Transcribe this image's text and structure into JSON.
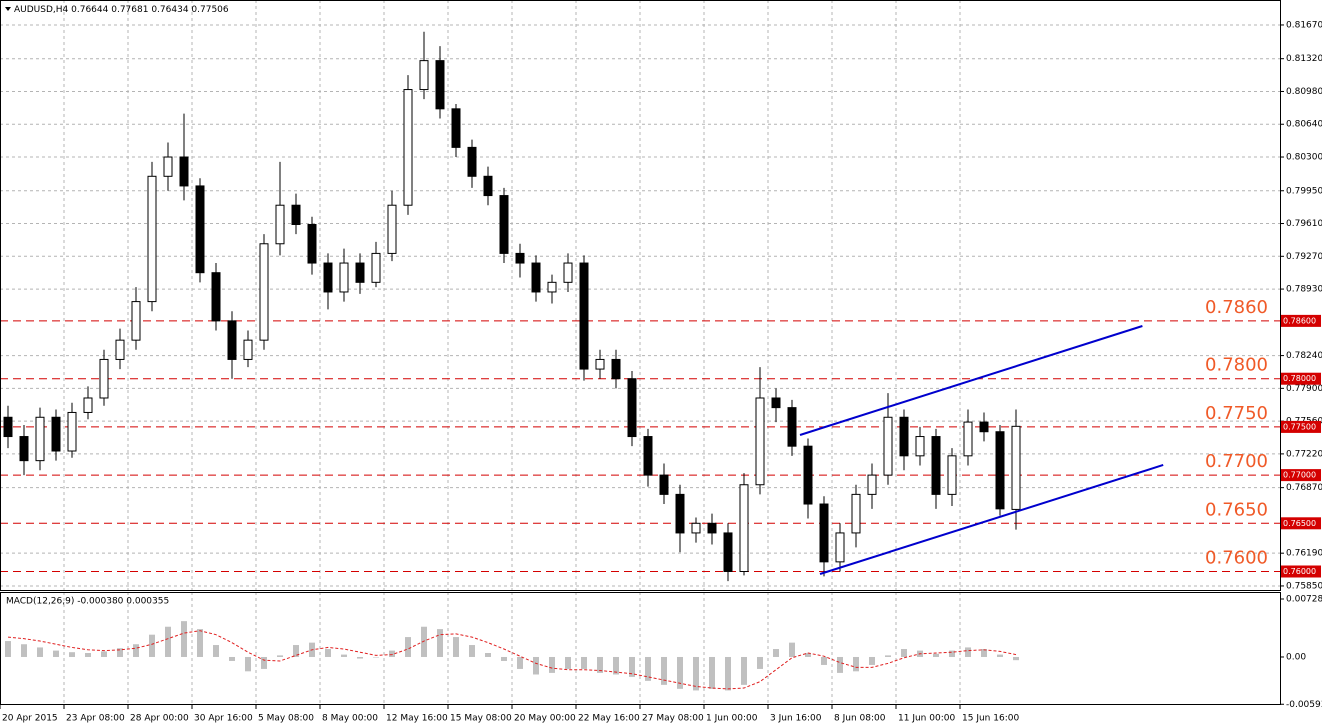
{
  "chart_data": {
    "type": "candlestick",
    "title": "AUDUSD,H4",
    "categories": [
      "20 Apr 2015",
      null,
      null,
      null,
      "23 Apr 08:00",
      null,
      null,
      null,
      "28 Apr 00:00",
      null,
      null,
      null,
      "30 Apr 16:00",
      null,
      null,
      null,
      "5 May 08:00",
      null,
      null,
      null,
      "8 May 00:00",
      null,
      null,
      null,
      "12 May 16:00",
      null,
      null,
      null,
      "15 May 08:00",
      null,
      null,
      null,
      "20 May 00:00",
      null,
      null,
      null,
      "22 May 16:00",
      null,
      null,
      null,
      "27 May 08:00",
      null,
      null,
      null,
      "1 Jun 00:00",
      null,
      null,
      null,
      "3 Jun 16:00",
      null,
      null,
      null,
      "8 Jun 08:00",
      null,
      null,
      null,
      "11 Jun 00:00",
      null,
      null,
      null,
      "15 Jun 16:00",
      null,
      null,
      null
    ],
    "open": [
      0.776,
      0.774,
      0.7715,
      0.776,
      0.7725,
      0.7765,
      0.778,
      0.782,
      0.784,
      0.788,
      0.801,
      0.803,
      0.8,
      0.791,
      0.786,
      0.782,
      0.784,
      0.794,
      0.798,
      0.796,
      0.792,
      0.789,
      0.792,
      0.79,
      0.793,
      0.798,
      0.81,
      0.813,
      0.808,
      0.804,
      0.801,
      0.799,
      0.793,
      0.792,
      0.789,
      0.79,
      0.792,
      0.781,
      0.782,
      0.78,
      0.774,
      0.77,
      0.768,
      0.764,
      0.765,
      0.764,
      0.76,
      0.769,
      0.778,
      0.777,
      0.773,
      0.767,
      0.761,
      0.764,
      0.768,
      0.77,
      0.776,
      0.772,
      0.774,
      0.768,
      0.772,
      0.7755,
      0.7745,
      0.76644
    ],
    "high": [
      0.7772,
      0.7752,
      0.777,
      0.7768,
      0.7775,
      0.7792,
      0.783,
      0.7852,
      0.7895,
      0.8025,
      0.8045,
      0.8075,
      0.8008,
      0.792,
      0.787,
      0.785,
      0.795,
      0.8025,
      0.7992,
      0.7968,
      0.793,
      0.7935,
      0.793,
      0.7942,
      0.7995,
      0.8115,
      0.816,
      0.8145,
      0.8085,
      0.8048,
      0.802,
      0.7998,
      0.794,
      0.7928,
      0.7908,
      0.793,
      0.7928,
      0.783,
      0.783,
      0.7808,
      0.7748,
      0.7712,
      0.769,
      0.7656,
      0.766,
      0.765,
      0.7702,
      0.7812,
      0.779,
      0.7778,
      0.7738,
      0.7678,
      0.765,
      0.769,
      0.7712,
      0.7785,
      0.7768,
      0.775,
      0.7748,
      0.7728,
      0.7768,
      0.7765,
      0.7752,
      0.77681
    ],
    "low": [
      0.7728,
      0.77,
      0.7705,
      0.7715,
      0.7718,
      0.7758,
      0.7772,
      0.781,
      0.783,
      0.787,
      0.7995,
      0.7985,
      0.79,
      0.785,
      0.78,
      0.7812,
      0.783,
      0.7928,
      0.795,
      0.7908,
      0.7872,
      0.788,
      0.7888,
      0.7895,
      0.7922,
      0.797,
      0.809,
      0.807,
      0.803,
      0.7998,
      0.798,
      0.792,
      0.7905,
      0.788,
      0.7878,
      0.789,
      0.7798,
      0.78,
      0.779,
      0.773,
      0.7688,
      0.767,
      0.762,
      0.763,
      0.7628,
      0.759,
      0.7596,
      0.768,
      0.7755,
      0.772,
      0.7655,
      0.7595,
      0.76,
      0.7625,
      0.7665,
      0.769,
      0.7705,
      0.771,
      0.7665,
      0.7668,
      0.771,
      0.7735,
      0.7658,
      0.76434
    ],
    "close": [
      0.774,
      0.7715,
      0.776,
      0.7725,
      0.7765,
      0.778,
      0.782,
      0.784,
      0.788,
      0.801,
      0.803,
      0.8,
      0.791,
      0.786,
      0.782,
      0.784,
      0.794,
      0.798,
      0.796,
      0.792,
      0.789,
      0.792,
      0.79,
      0.793,
      0.798,
      0.81,
      0.813,
      0.808,
      0.804,
      0.801,
      0.799,
      0.793,
      0.792,
      0.789,
      0.79,
      0.792,
      0.781,
      0.782,
      0.78,
      0.774,
      0.77,
      0.768,
      0.764,
      0.765,
      0.764,
      0.76,
      0.769,
      0.778,
      0.777,
      0.773,
      0.767,
      0.761,
      0.764,
      0.768,
      0.77,
      0.776,
      0.772,
      0.774,
      0.768,
      0.772,
      0.7755,
      0.7745,
      0.7665,
      0.77506
    ],
    "xlim": [
      -0.5,
      79.5
    ],
    "ylim": [
      0.75808,
      0.81929
    ],
    "yticks": [
      {
        "value": 0.8167,
        "label": "0.81670"
      },
      {
        "value": 0.8132,
        "label": "0.81320"
      },
      {
        "value": 0.8098,
        "label": "0.80980"
      },
      {
        "value": 0.8064,
        "label": "0.80640"
      },
      {
        "value": 0.803,
        "label": "0.80300"
      },
      {
        "value": 0.7995,
        "label": "0.79950"
      },
      {
        "value": 0.7961,
        "label": "0.79610"
      },
      {
        "value": 0.7927,
        "label": "0.79270"
      },
      {
        "value": 0.7893,
        "label": "0.78930"
      },
      {
        "value": 0.7824,
        "label": "0.78240"
      },
      {
        "value": 0.779,
        "label": "0.77900"
      },
      {
        "value": 0.7756,
        "label": "0.77560"
      },
      {
        "value": 0.7722,
        "label": "0.77220"
      },
      {
        "value": 0.7687,
        "label": "0.76870"
      },
      {
        "value": 0.7619,
        "label": "0.76190"
      },
      {
        "value": 0.7585,
        "label": "0.75850"
      }
    ],
    "grid": true,
    "bull_color": "#ffffff",
    "bear_color": "#000000",
    "levels": [
      {
        "value": 0.786,
        "label": "0.7860",
        "tag": "0.78600"
      },
      {
        "value": 0.78,
        "label": "0.7800",
        "tag": "0.78000"
      },
      {
        "value": 0.775,
        "label": "0.7750",
        "tag": "0.77500"
      },
      {
        "value": 0.77,
        "label": "0.7700",
        "tag": "0.77000"
      },
      {
        "value": 0.765,
        "label": "0.7650",
        "tag": "0.76500"
      },
      {
        "value": 0.76,
        "label": "0.7600",
        "tag": "0.76000"
      }
    ],
    "level_color": "#d40000",
    "trendlines": [
      {
        "x": [
          49.5,
          70.9
        ],
        "y": [
          0.77416,
          0.78547
        ]
      },
      {
        "x": [
          50.75,
          72.2
        ],
        "y": [
          0.75974,
          0.77105
        ]
      }
    ],
    "trend_color": "#0000cd",
    "macd": {
      "type": "macd",
      "title": "MACD(12,26,9) -0.000380 0.000355",
      "histogram": [
        0.002,
        0.0016,
        0.0012,
        0.0008,
        0.0006,
        0.0005,
        0.0007,
        0.0011,
        0.0016,
        0.0028,
        0.0038,
        0.0045,
        0.0035,
        0.0015,
        -0.0005,
        -0.0018,
        -0.0015,
        0.0002,
        0.0015,
        0.0018,
        0.001,
        0.0003,
        -0.0002,
        0.0,
        0.0008,
        0.0025,
        0.0038,
        0.0035,
        0.0025,
        0.0015,
        0.0005,
        -0.0005,
        -0.0015,
        -0.0022,
        -0.002,
        -0.0015,
        -0.0015,
        -0.002,
        -0.0022,
        -0.0025,
        -0.003,
        -0.0035,
        -0.004,
        -0.0042,
        -0.004,
        -0.0042,
        -0.0035,
        -0.0015,
        0.001,
        0.0018,
        0.0005,
        -0.001,
        -0.002,
        -0.0018,
        -0.001,
        0.0002,
        0.001,
        0.0008,
        0.0004,
        0.0008,
        0.0012,
        0.001,
        0.0003,
        -0.0004
      ],
      "signal": [
        0.0025,
        0.0023,
        0.002,
        0.0016,
        0.0012,
        0.0009,
        0.0008,
        0.0009,
        0.0011,
        0.0016,
        0.0023,
        0.003,
        0.0033,
        0.0028,
        0.0018,
        0.0006,
        -0.0004,
        -0.0005,
        0.0002,
        0.0009,
        0.0012,
        0.001,
        0.0006,
        0.0002,
        0.0003,
        0.001,
        0.002,
        0.0028,
        0.0029,
        0.0025,
        0.0018,
        0.001,
        0.0001,
        -0.0008,
        -0.0014,
        -0.0016,
        -0.0016,
        -0.0017,
        -0.0019,
        -0.0021,
        -0.0025,
        -0.0029,
        -0.0033,
        -0.0037,
        -0.0039,
        -0.004,
        -0.0039,
        -0.0031,
        -0.0016,
        -0.0001,
        0.0005,
        0.0001,
        -0.0007,
        -0.0013,
        -0.0013,
        -0.0008,
        -0.0001,
        0.0004,
        0.0005,
        0.0006,
        0.0008,
        0.0009,
        0.0007,
        0.0003
      ],
      "hist_color": "#c0c0c0",
      "signal_color": "#e02020",
      "ylim": [
        -0.00603,
        0.00816
      ],
      "yticks": [
        0.007281,
        {
          "value": 0,
          "label": "0.00"
        },
        -0.005936
      ]
    }
  }
}
